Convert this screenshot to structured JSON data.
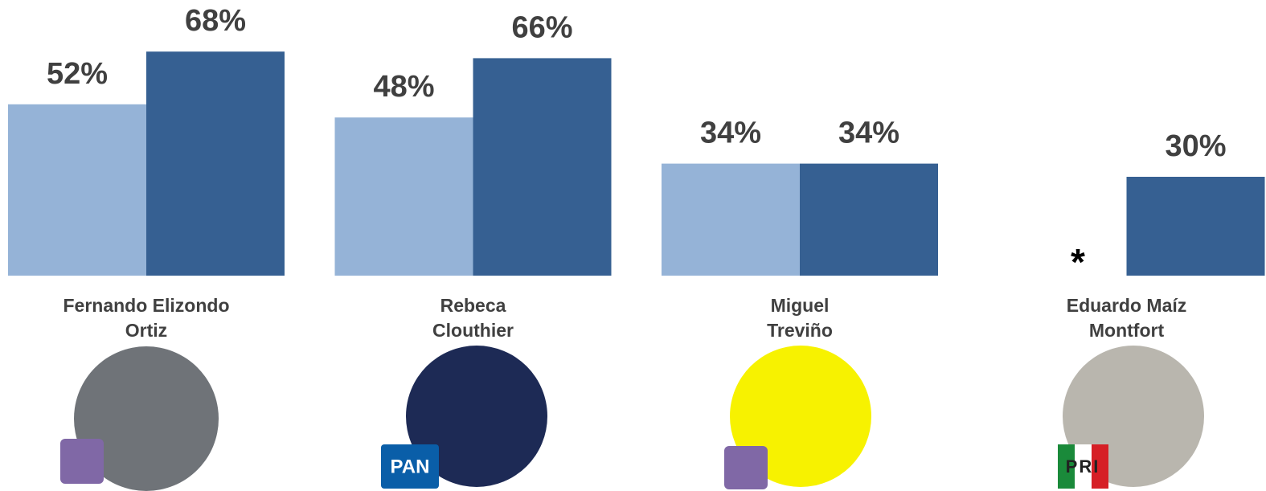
{
  "chart_data": {
    "type": "bar",
    "categories": [
      [
        "Fernando Elizondo",
        "Ortiz"
      ],
      [
        "Rebeca",
        "Clouthier"
      ],
      [
        "Miguel",
        "Treviño"
      ],
      [
        "Eduardo Maíz",
        "Montfort"
      ]
    ],
    "series": [
      {
        "color": "#95b3d7",
        "values": [
          52,
          48,
          34,
          null
        ],
        "value_labels": [
          "52%",
          "48%",
          "34%",
          null
        ]
      },
      {
        "color": "#366092",
        "values": [
          68,
          66,
          34,
          30
        ],
        "value_labels": [
          "68%",
          "66%",
          "34%",
          "30%"
        ]
      }
    ],
    "ylim": [
      0,
      83
    ],
    "annotation": "*",
    "party_logos": {
      "1": "PAN",
      "3": "PRI"
    }
  }
}
